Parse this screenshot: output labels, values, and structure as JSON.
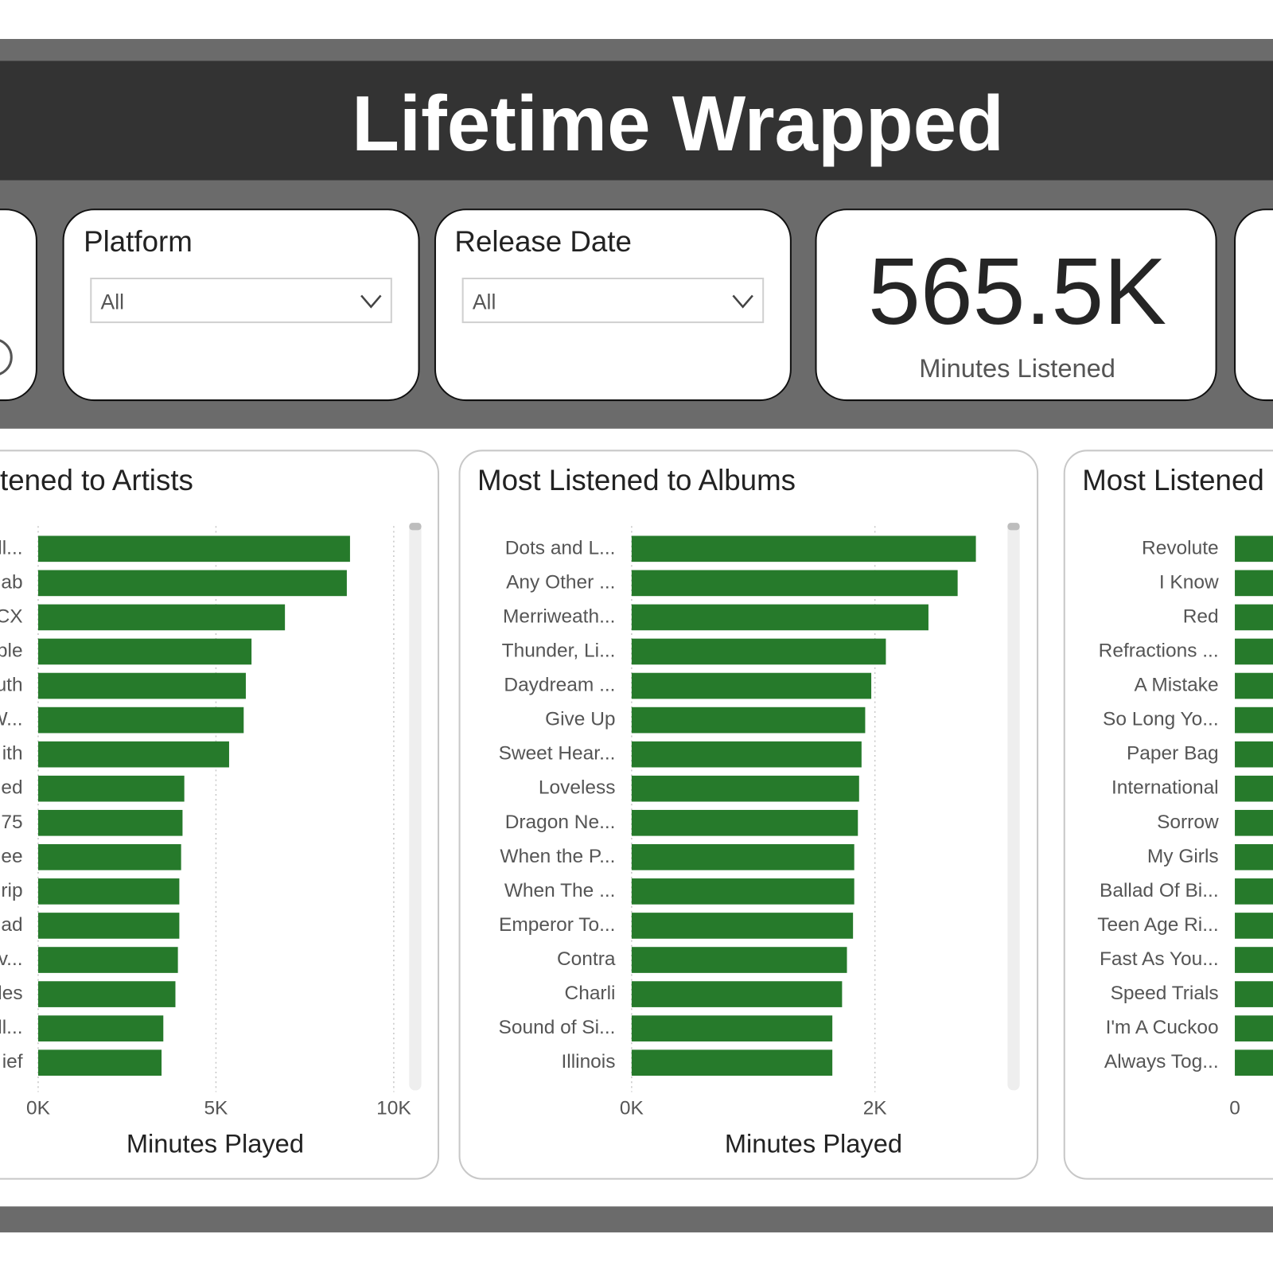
{
  "header": {
    "title": "Lifetime Wrapped"
  },
  "filters": [
    {
      "label": "Platform",
      "value": "All"
    },
    {
      "label": "Release Date",
      "value": "All"
    }
  ],
  "kpi": {
    "value": "565.5K",
    "label": "Minutes Listened"
  },
  "chart_data": [
    {
      "type": "hbar",
      "title": "tened to Artists",
      "xlabel": "Minutes Played",
      "color": "#267a2b",
      "categories": [
        "ll...",
        "ab",
        "CX",
        "ple",
        "uth",
        "W...",
        "ith",
        "ed",
        "75",
        "lee",
        "rip",
        "ad",
        "v...",
        "les",
        "ll...",
        "ief"
      ],
      "values": [
        8770,
        8680,
        6940,
        6000,
        5840,
        5780,
        5370,
        4110,
        4060,
        4020,
        3970,
        3970,
        3930,
        3860,
        3520,
        3470
      ],
      "xlim": [
        0,
        10000
      ],
      "xticks": [
        {
          "value": 0,
          "label": "0K"
        },
        {
          "value": 5000,
          "label": "5K"
        },
        {
          "value": 10000,
          "label": "10K"
        }
      ],
      "grid": true
    },
    {
      "type": "hbar",
      "title": "Most Listened to Albums",
      "xlabel": "Minutes Played",
      "color": "#267a2b",
      "categories": [
        "Dots and L...",
        "Any Other ...",
        "Merriweath...",
        "Thunder, Li...",
        "Daydream ...",
        "Give Up",
        "Sweet Hear...",
        "Loveless",
        "Dragon Ne...",
        "When the P...",
        "When The ...",
        "Emperor To...",
        "Contra",
        "Charli",
        "Sound of Si...",
        "Illinois"
      ],
      "values": [
        2830,
        2680,
        2440,
        2090,
        1970,
        1920,
        1890,
        1870,
        1860,
        1830,
        1830,
        1820,
        1770,
        1730,
        1650,
        1650
      ],
      "xlim": [
        0,
        3050
      ],
      "xticks": [
        {
          "value": 0,
          "label": "0K"
        },
        {
          "value": 2000,
          "label": "2K"
        }
      ],
      "grid": true
    },
    {
      "type": "hbar",
      "title": "Most Listened",
      "color": "#267a2b",
      "categories": [
        "Revolute",
        "I Know",
        "Red",
        "Refractions ...",
        "A Mistake",
        "So Long Yo...",
        "Paper Bag",
        "International",
        "Sorrow",
        "My Girls",
        "Ballad Of Bi...",
        "Teen Age Ri...",
        "Fast As You...",
        "Speed Trials",
        "I'm A Cuckoo",
        "Always Tog..."
      ],
      "xticks": [
        0
      ]
    }
  ]
}
